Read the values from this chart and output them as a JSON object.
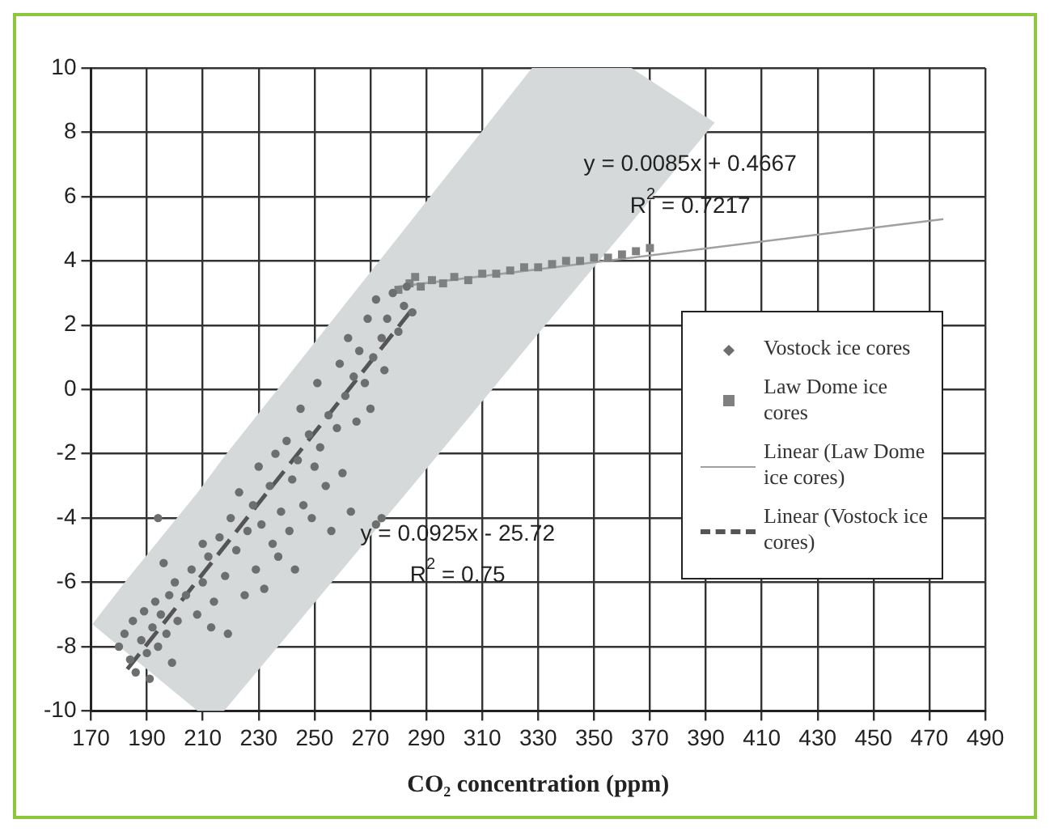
{
  "chart_data": {
    "type": "scatter",
    "xlabel": "CO₂ concentration (ppm)",
    "xlim": [
      170,
      490
    ],
    "xticks": [
      170,
      190,
      210,
      230,
      250,
      270,
      290,
      310,
      330,
      350,
      370,
      390,
      410,
      430,
      450,
      470,
      490
    ],
    "ylim": [
      -10,
      10
    ],
    "yticks": [
      -10,
      -8,
      -6,
      -4,
      -2,
      0,
      2,
      4,
      6,
      8,
      10
    ],
    "grid": true,
    "legend": "right",
    "series": [
      {
        "name": "Vostock ice cores",
        "marker": "circle",
        "color": "#6d6e70",
        "x": [
          180,
          182,
          184,
          185,
          186,
          188,
          189,
          190,
          191,
          192,
          193,
          194,
          194,
          195,
          196,
          197,
          198,
          199,
          200,
          201,
          204,
          206,
          208,
          210,
          210,
          212,
          213,
          214,
          216,
          218,
          219,
          220,
          222,
          223,
          225,
          226,
          228,
          229,
          230,
          231,
          232,
          234,
          235,
          236,
          237,
          238,
          240,
          241,
          242,
          243,
          244,
          245,
          246,
          248,
          249,
          250,
          251,
          252,
          254,
          255,
          256,
          258,
          259,
          260,
          261,
          262,
          263,
          264,
          265,
          266,
          268,
          269,
          270,
          271,
          272,
          272,
          274,
          274,
          275,
          276,
          278,
          280,
          282,
          283,
          285
        ],
        "values": [
          -8.0,
          -7.6,
          -8.4,
          -7.2,
          -8.8,
          -7.8,
          -6.9,
          -8.2,
          -9.0,
          -7.4,
          -6.6,
          -8.0,
          -4.0,
          -7.0,
          -5.4,
          -7.6,
          -6.4,
          -8.5,
          -6.0,
          -7.2,
          -6.4,
          -5.6,
          -7.0,
          -6.0,
          -4.8,
          -5.2,
          -7.4,
          -6.6,
          -4.6,
          -5.8,
          -7.6,
          -4.0,
          -5.0,
          -3.2,
          -6.4,
          -4.4,
          -3.6,
          -5.6,
          -2.4,
          -4.2,
          -6.2,
          -3.0,
          -4.8,
          -2.0,
          -5.2,
          -3.8,
          -1.6,
          -4.4,
          -2.8,
          -5.6,
          -2.2,
          -0.6,
          -3.6,
          -1.4,
          -4.0,
          -2.4,
          0.2,
          -1.8,
          -3.0,
          -0.8,
          -4.4,
          -1.2,
          0.8,
          -2.6,
          -0.2,
          1.6,
          -3.8,
          0.4,
          -1.0,
          1.2,
          0.2,
          2.2,
          -0.6,
          1.0,
          2.8,
          -4.2,
          1.6,
          -4.0,
          0.6,
          2.2,
          3.0,
          1.8,
          2.6,
          3.2,
          2.4
        ]
      },
      {
        "name": "Law Dome ice cores",
        "marker": "square",
        "color": "#7f8080",
        "x": [
          280,
          284,
          286,
          288,
          292,
          296,
          300,
          305,
          310,
          315,
          320,
          325,
          330,
          335,
          340,
          345,
          350,
          355,
          360,
          365,
          370
        ],
        "values": [
          3.1,
          3.3,
          3.5,
          3.2,
          3.4,
          3.3,
          3.5,
          3.4,
          3.6,
          3.6,
          3.7,
          3.8,
          3.8,
          3.9,
          4.0,
          4.0,
          4.1,
          4.1,
          4.2,
          4.3,
          4.4
        ]
      },
      {
        "name": "Linear (Law Dome ice cores)",
        "type": "line",
        "marker": "none",
        "line_style": "solid",
        "color": "#a0a0a0",
        "x": [
          280,
          475
        ],
        "values": [
          3.2,
          5.3
        ]
      },
      {
        "name": "Linear (Vostock ice cores)",
        "type": "line",
        "marker": "none",
        "line_style": "dashed",
        "color": "#555555",
        "x": [
          170.5,
          183,
          208.2,
          217.6,
          285,
          327.8,
          363.4,
          393.2
        ],
        "values": [
          null,
          -8.7,
          null,
          null,
          2.5,
          null,
          null,
          null
        ],
        "lower": [
          -7.3,
          -8.2,
          -10,
          -10,
          -3.0,
          1.5,
          5.2,
          8.3
        ],
        "upper": [
          -7.3,
          -5.9,
          -3.2,
          -2.1,
          5.3,
          10,
          10,
          8.3
        ]
      }
    ],
    "annotations": [
      "y = 0.0085x + 0.4667",
      "R$^{2}$ = 0.7217",
      "y = 0.0925x - 25.72",
      "R$^{2}$ = 0.75"
    ]
  }
}
